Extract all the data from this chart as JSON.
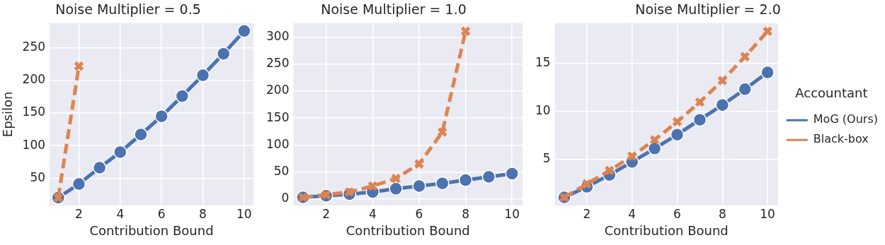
{
  "chart_data": [
    {
      "type": "line",
      "title": "Noise Multiplier = 0.5",
      "xlabel": "Contribution Bound",
      "ylabel": "Epsilon",
      "x": [
        1,
        2,
        3,
        4,
        5,
        6,
        7,
        8,
        9,
        10
      ],
      "xlim": [
        0.58,
        10.45
      ],
      "xticks": [
        2,
        4,
        6,
        8,
        10
      ],
      "ylim": [
        8,
        288
      ],
      "yticks": [
        50,
        100,
        150,
        200,
        250
      ],
      "grid": true,
      "legend": false,
      "series": [
        {
          "color": "#4c72b0",
          "marker": "circle",
          "line_style": "solid",
          "values": [
            20,
            41,
            66,
            90,
            117,
            145,
            176,
            208,
            241,
            276
          ]
        },
        {
          "color": "#dd8452",
          "marker": "cross",
          "line_style": "dashed",
          "values": [
            20,
            222,
            null,
            null,
            null,
            null,
            null,
            null,
            null,
            null
          ]
        }
      ]
    },
    {
      "type": "line",
      "title": "Noise Multiplier = 1.0",
      "xlabel": "Contribution Bound",
      "x": [
        1,
        2,
        3,
        4,
        5,
        6,
        7,
        8,
        9,
        10
      ],
      "xlim": [
        0.59,
        10.45
      ],
      "xticks": [
        2,
        4,
        6,
        8,
        10
      ],
      "ylim": [
        -12,
        326
      ],
      "yticks": [
        0,
        50,
        100,
        150,
        200,
        250,
        300
      ],
      "grid": true,
      "legend": false,
      "series": [
        {
          "color": "#4c72b0",
          "marker": "circle",
          "line_style": "solid",
          "values": [
            3,
            6,
            9,
            13,
            19,
            24,
            29,
            35,
            41,
            47
          ]
        },
        {
          "color": "#dd8452",
          "marker": "cross",
          "line_style": "dashed",
          "values": [
            3,
            8,
            13,
            24,
            38,
            65,
            124,
            311,
            null,
            null
          ]
        }
      ]
    },
    {
      "type": "line",
      "title": "Noise Multiplier = 2.0",
      "xlabel": "Contribution Bound",
      "legend_title": "Accountant",
      "x": [
        1,
        2,
        3,
        4,
        5,
        6,
        7,
        8,
        9,
        10
      ],
      "xlim": [
        0.58,
        10.46
      ],
      "xticks": [
        2,
        4,
        6,
        8,
        10
      ],
      "ylim": [
        0.15,
        19.2
      ],
      "yticks": [
        5,
        10,
        15
      ],
      "grid": true,
      "legend": "right",
      "series": [
        {
          "name": "MoG (Ours)",
          "color": "#4c72b0",
          "marker": "circle",
          "line_style": "solid",
          "values": [
            1.0,
            2.1,
            3.35,
            4.7,
            6.1,
            7.55,
            9.1,
            10.65,
            12.3,
            14.05
          ]
        },
        {
          "name": "Black-box",
          "color": "#dd8452",
          "marker": "cross",
          "line_style": "dashed",
          "values": [
            1.0,
            2.4,
            3.8,
            5.3,
            7.0,
            8.9,
            10.95,
            13.2,
            15.7,
            18.35
          ]
        }
      ]
    }
  ]
}
